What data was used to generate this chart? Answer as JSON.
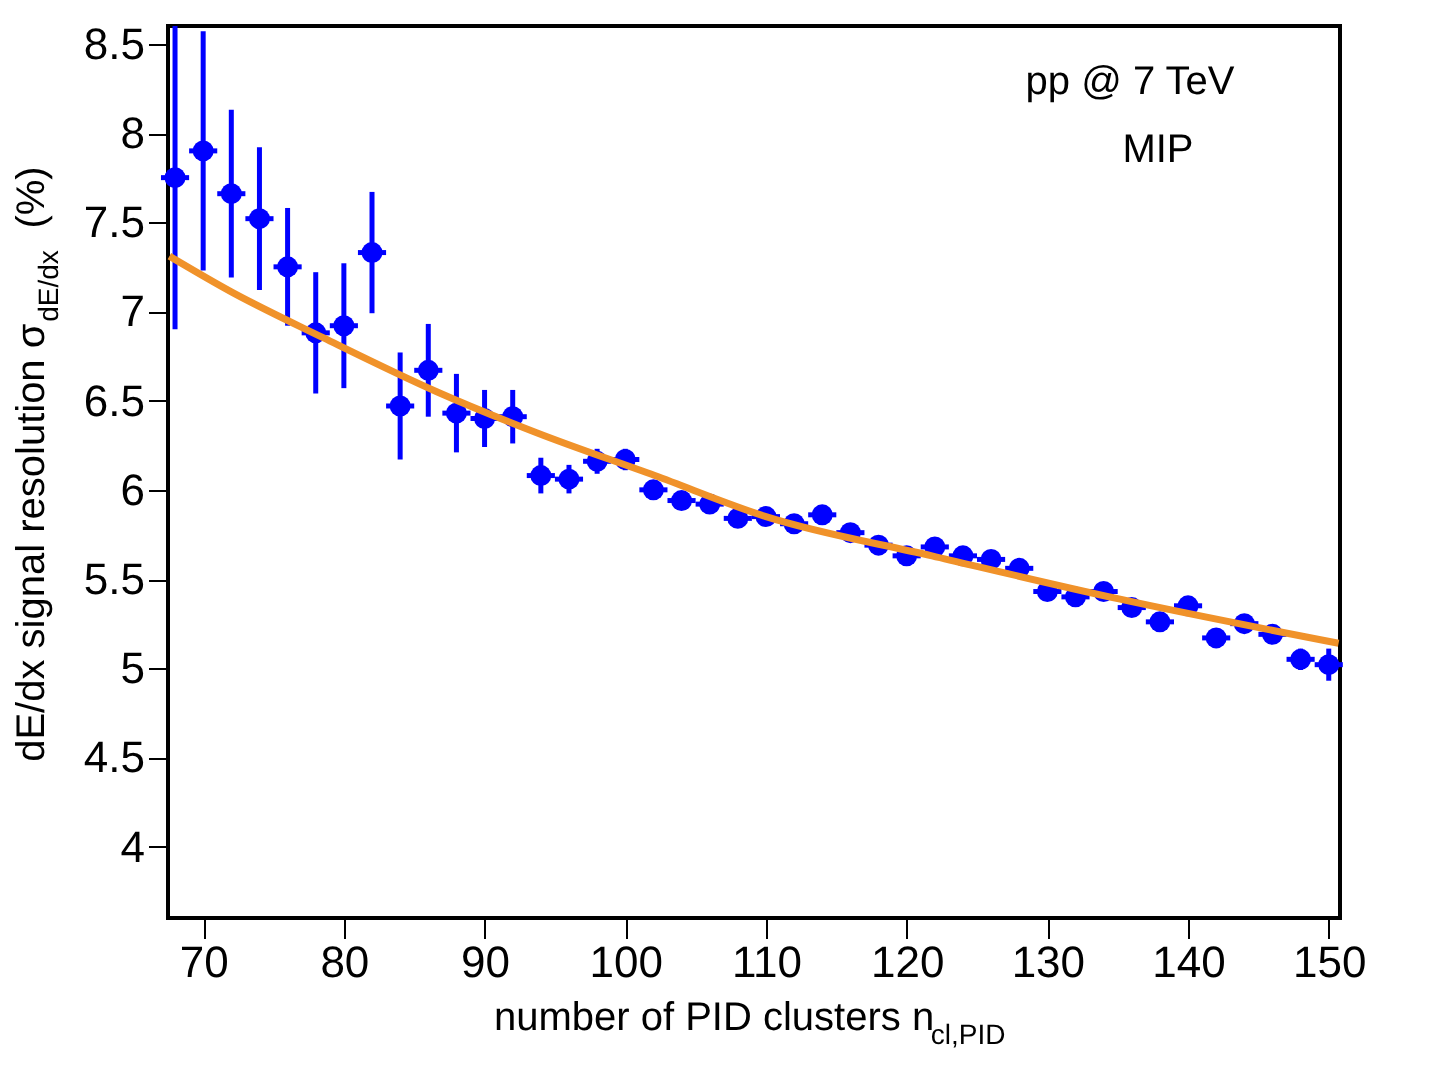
{
  "chart_data": {
    "type": "scatter",
    "xlabel": "number of PID clusters n$_{cl,PID}$",
    "ylabel": "dE/dx signal resolution σ$_{dE/dx}$ (%)",
    "annotations": [
      "pp @ 7 TeV",
      "MIP"
    ],
    "xlim": [
      67.5,
      150.8
    ],
    "ylim": [
      3.6,
      8.6
    ],
    "xticks": [
      70,
      80,
      90,
      100,
      110,
      120,
      130,
      140,
      150
    ],
    "yticks": [
      4,
      4.5,
      5,
      5.5,
      6,
      6.5,
      7,
      7.5,
      8,
      8.5
    ],
    "grid": false,
    "marker": "circle",
    "series": [
      {
        "color": "#0000ff",
        "x": [
          68,
          70,
          72,
          74,
          76,
          78,
          80,
          82,
          84,
          86,
          88,
          90,
          92,
          94,
          96,
          98,
          100,
          102,
          104,
          106,
          108,
          110,
          112,
          114,
          116,
          118,
          120,
          122,
          124,
          126,
          128,
          130,
          132,
          134,
          136,
          138,
          140,
          142,
          144,
          146,
          148,
          150
        ],
        "values": [
          7.75,
          7.9,
          7.66,
          7.52,
          7.25,
          6.88,
          6.92,
          7.33,
          6.47,
          6.67,
          6.43,
          6.4,
          6.41,
          6.08,
          6.06,
          6.16,
          6.17,
          6.0,
          5.94,
          5.92,
          5.84,
          5.85,
          5.81,
          5.86,
          5.76,
          5.69,
          5.63,
          5.68,
          5.63,
          5.61,
          5.56,
          5.43,
          5.4,
          5.43,
          5.34,
          5.26,
          5.35,
          5.17,
          5.25,
          5.19,
          5.05,
          5.02
        ],
        "errors": [
          0.85,
          0.67,
          0.47,
          0.4,
          0.33,
          0.34,
          0.35,
          0.34,
          0.3,
          0.26,
          0.22,
          0.16,
          0.15,
          0.1,
          0.08,
          0.07,
          0.06,
          0.04,
          0.04,
          0.04,
          0.04,
          0.04,
          0.04,
          0.04,
          0.04,
          0.04,
          0.04,
          0.04,
          0.04,
          0.04,
          0.04,
          0.04,
          0.04,
          0.04,
          0.04,
          0.04,
          0.04,
          0.04,
          0.04,
          0.04,
          0.06,
          0.09
        ],
        "xerrors": [
          1,
          1,
          1,
          1,
          1,
          1,
          1,
          1,
          1,
          1,
          1,
          1,
          1,
          1,
          1,
          1,
          1,
          1,
          1,
          1,
          1,
          1,
          1,
          1,
          1,
          1,
          1,
          1,
          1,
          1,
          1,
          1,
          1,
          1,
          1,
          1,
          1,
          1,
          1,
          1,
          1,
          1
        ]
      },
      {
        "type": "line",
        "color": "#f0922a",
        "line_style": "solid",
        "marker": "none",
        "x": [
          67.6,
          72,
          78.6,
          86.6,
          93.7,
          102.1,
          110,
          121.8,
          135,
          150.7
        ],
        "values": [
          7.31,
          7.11,
          6.85,
          6.55,
          6.32,
          6.08,
          5.85,
          5.63,
          5.39,
          5.14
        ]
      }
    ]
  }
}
